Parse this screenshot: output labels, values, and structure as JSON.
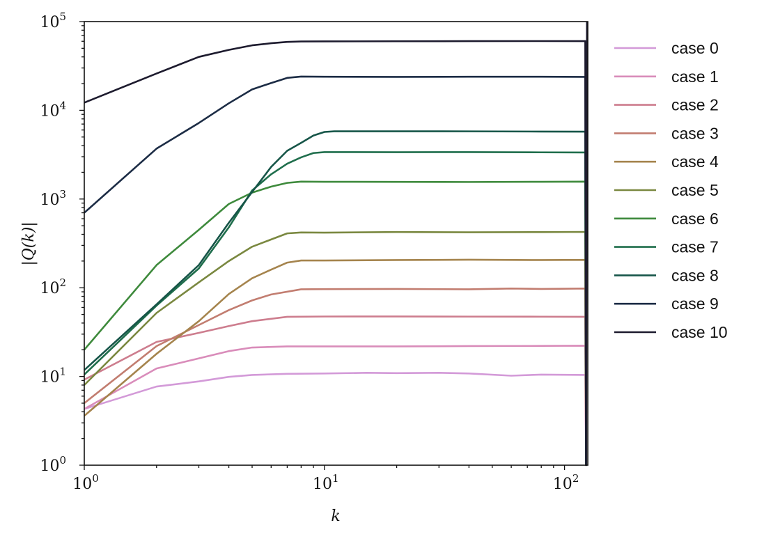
{
  "chart_data": {
    "type": "line",
    "title": "",
    "xlabel": "k",
    "ylabel": "|Q(k)|",
    "xscale": "log",
    "yscale": "log",
    "xlim": [
      1,
      125
    ],
    "ylim": [
      1,
      100000
    ],
    "grid": false,
    "legend_position": "outside-right",
    "x_ticks": [
      {
        "value": 1,
        "base": "10",
        "exp": "0"
      },
      {
        "value": 10,
        "base": "10",
        "exp": "1"
      },
      {
        "value": 100,
        "base": "10",
        "exp": "2"
      }
    ],
    "y_ticks": [
      {
        "value": 1,
        "base": "10",
        "exp": "0"
      },
      {
        "value": 10,
        "base": "10",
        "exp": "1"
      },
      {
        "value": 100,
        "base": "10",
        "exp": "2"
      },
      {
        "value": 1000,
        "base": "10",
        "exp": "3"
      },
      {
        "value": 10000,
        "base": "10",
        "exp": "4"
      },
      {
        "value": 100000,
        "base": "10",
        "exp": "5"
      }
    ],
    "series": [
      {
        "name": "case 0",
        "color": "#d39ad8",
        "points": [
          [
            1,
            4.3
          ],
          [
            2,
            7.7
          ],
          [
            3,
            8.8
          ],
          [
            4,
            9.9
          ],
          [
            5,
            10.4
          ],
          [
            7,
            10.7
          ],
          [
            10,
            10.8
          ],
          [
            15,
            11.0
          ],
          [
            20,
            10.9
          ],
          [
            30,
            11.0
          ],
          [
            40,
            10.8
          ],
          [
            60,
            10.2
          ],
          [
            80,
            10.5
          ],
          [
            122,
            10.4
          ],
          [
            123,
            1
          ]
        ]
      },
      {
        "name": "case 1",
        "color": "#d98cba",
        "points": [
          [
            1,
            4.3
          ],
          [
            2,
            12.3
          ],
          [
            3,
            16.0
          ],
          [
            4,
            19.3
          ],
          [
            5,
            21.2
          ],
          [
            7,
            21.8
          ],
          [
            10,
            21.8
          ],
          [
            20,
            21.8
          ],
          [
            40,
            22.0
          ],
          [
            80,
            22.1
          ],
          [
            122,
            22.2
          ],
          [
            123,
            1
          ]
        ]
      },
      {
        "name": "case 2",
        "color": "#cd7d8e",
        "points": [
          [
            1,
            9.2
          ],
          [
            2,
            24.5
          ],
          [
            3,
            31.0
          ],
          [
            4,
            37.0
          ],
          [
            5,
            42.0
          ],
          [
            7,
            47.0
          ],
          [
            10,
            47.4
          ],
          [
            20,
            47.5
          ],
          [
            40,
            47.3
          ],
          [
            80,
            47.2
          ],
          [
            122,
            47.0
          ],
          [
            123,
            1
          ]
        ]
      },
      {
        "name": "case 3",
        "color": "#c27d70",
        "points": [
          [
            1,
            5.0
          ],
          [
            2,
            22.0
          ],
          [
            3,
            38.0
          ],
          [
            4,
            56.0
          ],
          [
            5,
            72.0
          ],
          [
            6,
            84.0
          ],
          [
            8,
            96.0
          ],
          [
            10,
            96.5
          ],
          [
            20,
            97.0
          ],
          [
            40,
            96.0
          ],
          [
            60,
            98.0
          ],
          [
            80,
            97.0
          ],
          [
            122,
            98.0
          ],
          [
            123,
            1
          ]
        ]
      },
      {
        "name": "case 4",
        "color": "#a5844d",
        "points": [
          [
            1,
            3.6
          ],
          [
            2,
            18.0
          ],
          [
            3,
            42.0
          ],
          [
            4,
            85.0
          ],
          [
            5,
            128.0
          ],
          [
            6,
            160.0
          ],
          [
            7,
            192.0
          ],
          [
            8,
            203.0
          ],
          [
            10,
            203.0
          ],
          [
            20,
            205.0
          ],
          [
            40,
            207.0
          ],
          [
            80,
            205.0
          ],
          [
            122,
            206.0
          ],
          [
            123,
            1
          ]
        ]
      },
      {
        "name": "case 5",
        "color": "#7a8840",
        "points": [
          [
            1,
            8.0
          ],
          [
            2,
            52.0
          ],
          [
            3,
            115.0
          ],
          [
            4,
            200.0
          ],
          [
            5,
            290.0
          ],
          [
            6,
            350.0
          ],
          [
            7,
            410.0
          ],
          [
            8,
            420.0
          ],
          [
            10,
            418.0
          ],
          [
            20,
            425.0
          ],
          [
            40,
            422.0
          ],
          [
            80,
            424.0
          ],
          [
            122,
            426.0
          ],
          [
            123,
            1
          ]
        ]
      },
      {
        "name": "case 6",
        "color": "#3e8a3c",
        "points": [
          [
            1,
            20.0
          ],
          [
            2,
            180.0
          ],
          [
            3,
            450.0
          ],
          [
            4,
            880.0
          ],
          [
            5,
            1180.0
          ],
          [
            6,
            1380.0
          ],
          [
            7,
            1520.0
          ],
          [
            8,
            1570.0
          ],
          [
            10,
            1565.0
          ],
          [
            20,
            1560.0
          ],
          [
            40,
            1555.0
          ],
          [
            80,
            1565.0
          ],
          [
            122,
            1570.0
          ],
          [
            123,
            1
          ]
        ]
      },
      {
        "name": "case 7",
        "color": "#1f6e4c",
        "points": [
          [
            1,
            10.5
          ],
          [
            2,
            63.0
          ],
          [
            3,
            165.0
          ],
          [
            4,
            480.0
          ],
          [
            5,
            1250.0
          ],
          [
            6,
            1900.0
          ],
          [
            7,
            2500.0
          ],
          [
            8,
            2950.0
          ],
          [
            9,
            3300.0
          ],
          [
            10,
            3380.0
          ],
          [
            20,
            3370.0
          ],
          [
            40,
            3380.0
          ],
          [
            80,
            3360.0
          ],
          [
            122,
            3350.0
          ],
          [
            123,
            1
          ]
        ]
      },
      {
        "name": "case 8",
        "color": "#165548",
        "points": [
          [
            1,
            11.8
          ],
          [
            2,
            65.0
          ],
          [
            3,
            180.0
          ],
          [
            4,
            540.0
          ],
          [
            5,
            1200.0
          ],
          [
            6,
            2300.0
          ],
          [
            7,
            3500.0
          ],
          [
            8,
            4300.0
          ],
          [
            9,
            5200.0
          ],
          [
            10,
            5700.0
          ],
          [
            11,
            5800.0
          ],
          [
            20,
            5800.0
          ],
          [
            40,
            5790.0
          ],
          [
            80,
            5760.0
          ],
          [
            122,
            5750.0
          ],
          [
            123,
            1
          ]
        ]
      },
      {
        "name": "case 9",
        "color": "#1c2c45",
        "points": [
          [
            1,
            700.0
          ],
          [
            2,
            3700.0
          ],
          [
            3,
            7200.0
          ],
          [
            4,
            12000.0
          ],
          [
            5,
            17200.0
          ],
          [
            6,
            20300.0
          ],
          [
            7,
            23200.0
          ],
          [
            8,
            24000.0
          ],
          [
            10,
            23900.0
          ],
          [
            20,
            23800.0
          ],
          [
            40,
            23900.0
          ],
          [
            80,
            23900.0
          ],
          [
            122,
            23800.0
          ],
          [
            123,
            1
          ]
        ]
      },
      {
        "name": "case 10",
        "color": "#1d1b2e",
        "points": [
          [
            1,
            12200.0
          ],
          [
            2,
            26000.0
          ],
          [
            3,
            40000.0
          ],
          [
            4,
            48000.0
          ],
          [
            5,
            54000.0
          ],
          [
            6,
            57000.0
          ],
          [
            7,
            59000.0
          ],
          [
            8,
            59700.0
          ],
          [
            10,
            59800.0
          ],
          [
            20,
            60000.0
          ],
          [
            40,
            60200.0
          ],
          [
            80,
            60300.0
          ],
          [
            122,
            60200.0
          ],
          [
            123,
            1
          ],
          [
            124,
            100000
          ]
        ]
      }
    ]
  }
}
